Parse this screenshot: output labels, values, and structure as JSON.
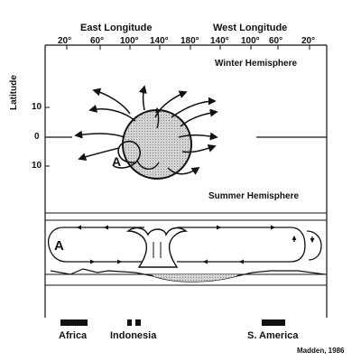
{
  "header": {
    "east_longitude": "East Longitude",
    "west_longitude": "West Longitude"
  },
  "longitude_ticks": [
    "20°",
    "60°",
    "100°",
    "140°",
    "180°",
    "140°",
    "100°",
    "60°",
    "20°"
  ],
  "latitude_axis": {
    "title": "Latitude",
    "ticks": [
      "10",
      "0",
      "10"
    ]
  },
  "hemispheres": {
    "winter": "Winter Hemisphere",
    "summer": "Summer Hemisphere"
  },
  "markers": {
    "anomaly_top": "A",
    "anomaly_bottom": "A"
  },
  "regions": [
    "Africa",
    "Indonesia",
    "S. America"
  ],
  "credit": "Madden, 1986",
  "colors": {
    "ink": "#111111",
    "shade": "#c8c8c8",
    "background": "#ffffff"
  }
}
